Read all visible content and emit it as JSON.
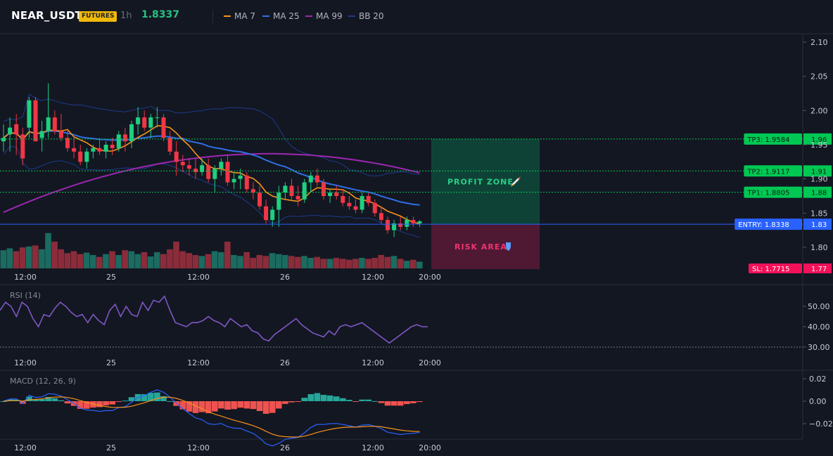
{
  "header": {
    "symbol": "NEAR_USDT",
    "badge": "FUTURES",
    "timeframe": "1h",
    "price": "1.8337",
    "legend": [
      {
        "label": "MA 7",
        "color": "#f7931a"
      },
      {
        "label": "MA 25",
        "color": "#2f6fe4"
      },
      {
        "label": "MA 99",
        "color": "#9c27b0"
      },
      {
        "label": "BB 20",
        "color": "#1e3a8a"
      }
    ]
  },
  "colors": {
    "up": "#1fcf7f",
    "down": "#f23645",
    "vol_up": "#1b6b60",
    "vol_down": "#8c2c3a",
    "profit_zone": "#0f4a3a",
    "risk_area": "#5a1a37",
    "entry": "#2962ff",
    "tp": "#00c853",
    "sl": "#f5105a"
  },
  "chart_data": [
    {
      "type": "candlestick",
      "name": "price",
      "x_ticks": [
        "12:00",
        "25",
        "12:00",
        "26",
        "12:00",
        "20:00"
      ],
      "y_ticks": [
        "2.10",
        "2.05",
        "2.00",
        "1.95",
        "1.90",
        "1.85",
        "1.80"
      ],
      "ylim": [
        1.775,
        2.115
      ],
      "candles": [
        [
          1.955,
          1.98,
          1.94,
          1.96
        ],
        [
          1.965,
          1.99,
          1.94,
          1.975
        ],
        [
          1.98,
          1.995,
          1.935,
          1.965
        ],
        [
          1.965,
          1.975,
          1.92,
          1.93
        ],
        [
          1.975,
          2.02,
          1.96,
          2.015
        ],
        [
          2.015,
          2.02,
          1.955,
          1.955
        ],
        [
          1.96,
          1.985,
          1.94,
          1.97
        ],
        [
          1.97,
          2.04,
          1.96,
          1.99
        ],
        [
          1.99,
          2.0,
          1.965,
          1.97
        ],
        [
          1.97,
          1.995,
          1.955,
          1.96
        ],
        [
          1.96,
          1.97,
          1.94,
          1.945
        ],
        [
          1.945,
          1.96,
          1.93,
          1.94
        ],
        [
          1.94,
          1.95,
          1.92,
          1.925
        ],
        [
          1.925,
          1.945,
          1.915,
          1.94
        ],
        [
          1.94,
          1.95,
          1.93,
          1.945
        ],
        [
          1.945,
          1.96,
          1.935,
          1.94
        ],
        [
          1.94,
          1.955,
          1.93,
          1.95
        ],
        [
          1.95,
          1.96,
          1.935,
          1.945
        ],
        [
          1.945,
          1.97,
          1.94,
          1.965
        ],
        [
          1.965,
          1.975,
          1.94,
          1.955
        ],
        [
          1.955,
          1.985,
          1.945,
          1.98
        ],
        [
          1.98,
          2.005,
          1.965,
          1.99
        ],
        [
          1.99,
          2.0,
          1.97,
          1.975
        ],
        [
          1.975,
          1.995,
          1.96,
          1.99
        ],
        [
          1.99,
          2.005,
          1.975,
          1.99
        ],
        [
          1.99,
          1.995,
          1.955,
          1.96
        ],
        [
          1.96,
          1.97,
          1.935,
          1.94
        ],
        [
          1.94,
          1.955,
          1.905,
          1.925
        ],
        [
          1.925,
          1.935,
          1.91,
          1.92
        ],
        [
          1.92,
          1.93,
          1.905,
          1.915
        ],
        [
          1.915,
          1.93,
          1.9,
          1.91
        ],
        [
          1.91,
          1.93,
          1.905,
          1.92
        ],
        [
          1.92,
          1.93,
          1.895,
          1.9
        ],
        [
          1.9,
          1.92,
          1.88,
          1.915
        ],
        [
          1.915,
          1.93,
          1.905,
          1.925
        ],
        [
          1.925,
          1.935,
          1.89,
          1.895
        ],
        [
          1.895,
          1.91,
          1.885,
          1.9
        ],
        [
          1.9,
          1.915,
          1.885,
          1.905
        ],
        [
          1.905,
          1.91,
          1.88,
          1.885
        ],
        [
          1.885,
          1.895,
          1.87,
          1.88
        ],
        [
          1.88,
          1.89,
          1.855,
          1.86
        ],
        [
          1.86,
          1.87,
          1.835,
          1.84
        ],
        [
          1.84,
          1.86,
          1.83,
          1.855
        ],
        [
          1.855,
          1.89,
          1.83,
          1.88
        ],
        [
          1.88,
          1.895,
          1.87,
          1.89
        ],
        [
          1.89,
          1.9,
          1.87,
          1.875
        ],
        [
          1.875,
          1.89,
          1.86,
          1.87
        ],
        [
          1.87,
          1.9,
          1.865,
          1.895
        ],
        [
          1.895,
          1.91,
          1.88,
          1.905
        ],
        [
          1.905,
          1.915,
          1.89,
          1.895
        ],
        [
          1.895,
          1.9,
          1.87,
          1.875
        ],
        [
          1.875,
          1.885,
          1.865,
          1.88
        ],
        [
          1.88,
          1.89,
          1.87,
          1.875
        ],
        [
          1.875,
          1.885,
          1.86,
          1.865
        ],
        [
          1.865,
          1.875,
          1.855,
          1.86
        ],
        [
          1.86,
          1.87,
          1.85,
          1.855
        ],
        [
          1.855,
          1.88,
          1.85,
          1.875
        ],
        [
          1.875,
          1.88,
          1.86,
          1.865
        ],
        [
          1.865,
          1.87,
          1.845,
          1.85
        ],
        [
          1.85,
          1.86,
          1.835,
          1.84
        ],
        [
          1.84,
          1.845,
          1.82,
          1.825
        ],
        [
          1.825,
          1.84,
          1.815,
          1.835
        ],
        [
          1.835,
          1.845,
          1.825,
          1.83
        ],
        [
          1.83,
          1.845,
          1.825,
          1.84
        ],
        [
          1.84,
          1.845,
          1.83,
          1.835
        ],
        [
          1.835,
          1.84,
          1.83,
          1.838
        ]
      ],
      "volume_max": 100,
      "volume": [
        38,
        42,
        36,
        44,
        46,
        48,
        40,
        74,
        56,
        40,
        32,
        36,
        30,
        33,
        28,
        24,
        30,
        36,
        28,
        38,
        36,
        30,
        34,
        25,
        34,
        30,
        40,
        56,
        36,
        32,
        28,
        26,
        30,
        36,
        34,
        56,
        28,
        26,
        34,
        22,
        28,
        26,
        32,
        30,
        28,
        26,
        24,
        26,
        22,
        24,
        20,
        20,
        22,
        20,
        18,
        20,
        22,
        20,
        22,
        28,
        24,
        26,
        20,
        16,
        18,
        14
      ]
    },
    {
      "type": "line",
      "name": "RSI (14)",
      "y_ticks": [
        "50.00",
        "40.00",
        "30.00"
      ],
      "ylim": [
        25,
        58
      ],
      "reference": 30,
      "values": [
        48,
        52,
        50,
        45,
        52,
        50,
        44,
        40,
        46,
        45,
        49,
        52,
        50,
        47,
        45,
        46,
        42,
        46,
        43,
        41,
        48,
        51,
        45,
        50,
        46,
        45,
        52,
        48,
        53,
        52,
        55,
        48,
        42,
        41,
        40,
        42,
        42,
        43,
        45,
        43,
        42,
        40,
        44,
        42,
        40,
        41,
        38,
        37,
        34,
        33,
        36,
        38,
        40,
        42,
        44,
        41,
        39,
        37,
        36,
        35,
        38,
        36,
        40,
        41,
        40,
        41,
        42,
        40,
        38,
        36,
        34,
        32,
        34,
        36,
        38,
        40,
        41,
        40,
        40
      ]
    },
    {
      "type": "line",
      "name": "MACD (12, 26, 9)",
      "y_ticks": [
        "0.02",
        "0.00",
        "−0.02"
      ],
      "ylim": [
        -0.028,
        0.028
      ]
    }
  ],
  "levels": {
    "tp3": {
      "label": "TP3: 1.9584",
      "value": 1.9584,
      "axis": "1.96"
    },
    "tp2": {
      "label": "TP2: 1.9117",
      "value": 1.9117,
      "axis": "1.91"
    },
    "tp1": {
      "label": "TP1: 1.8805",
      "value": 1.8805,
      "axis": "1.88"
    },
    "entry": {
      "label": "ENTRY: 1.8338",
      "value": 1.8338,
      "axis": "1.83"
    },
    "sl": {
      "label": "SL: 1.7715",
      "value": 1.7715,
      "axis": "1.77"
    }
  },
  "zones": {
    "profit": {
      "label": "PROFIT ZONE",
      "icon": "rocket-icon",
      "top": 1.9584,
      "bottom": 1.8338
    },
    "risk": {
      "label": "RISK AREA",
      "icon": "shield-icon",
      "top": 1.8338,
      "bottom": 1.7715
    }
  }
}
